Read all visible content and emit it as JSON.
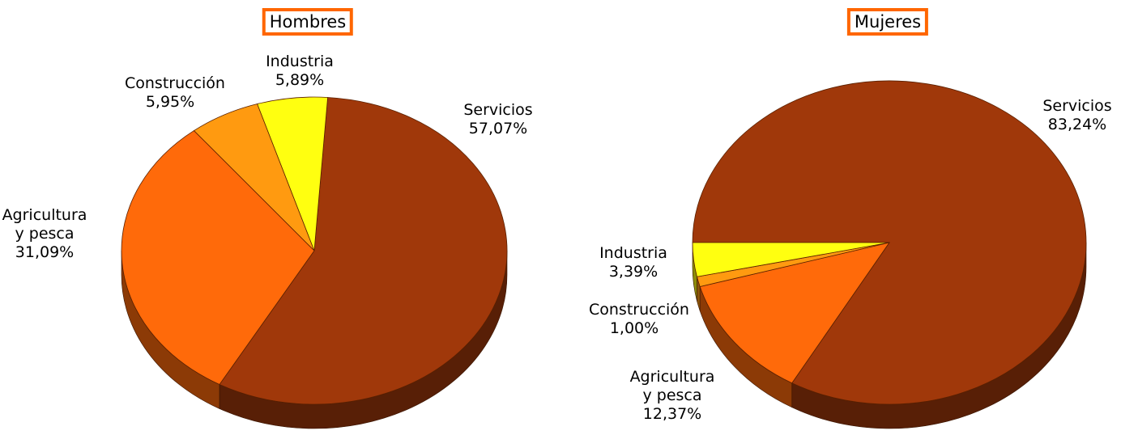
{
  "chart_data": [
    {
      "type": "pie",
      "title": "Hombres",
      "categories": [
        "Servicios",
        "Agricultura y pesca",
        "Construcción",
        "Industria"
      ],
      "values": [
        57.07,
        31.09,
        5.95,
        5.89
      ],
      "value_labels": [
        "57,07%",
        "31,09%",
        "5,95%",
        "5,89%"
      ],
      "colors": [
        "#a0380a",
        "#ff6a0a",
        "#ff9a10",
        "#ffff10"
      ]
    },
    {
      "type": "pie",
      "title": "Mujeres",
      "categories": [
        "Servicios",
        "Agricultura y pesca",
        "Construcción",
        "Industria"
      ],
      "values": [
        83.24,
        12.37,
        1.0,
        3.39
      ],
      "value_labels": [
        "83,24%",
        "12,37%",
        "1,00%",
        "3,39%"
      ],
      "colors": [
        "#a0380a",
        "#ff6a0a",
        "#ff9a10",
        "#ffff10"
      ]
    }
  ]
}
